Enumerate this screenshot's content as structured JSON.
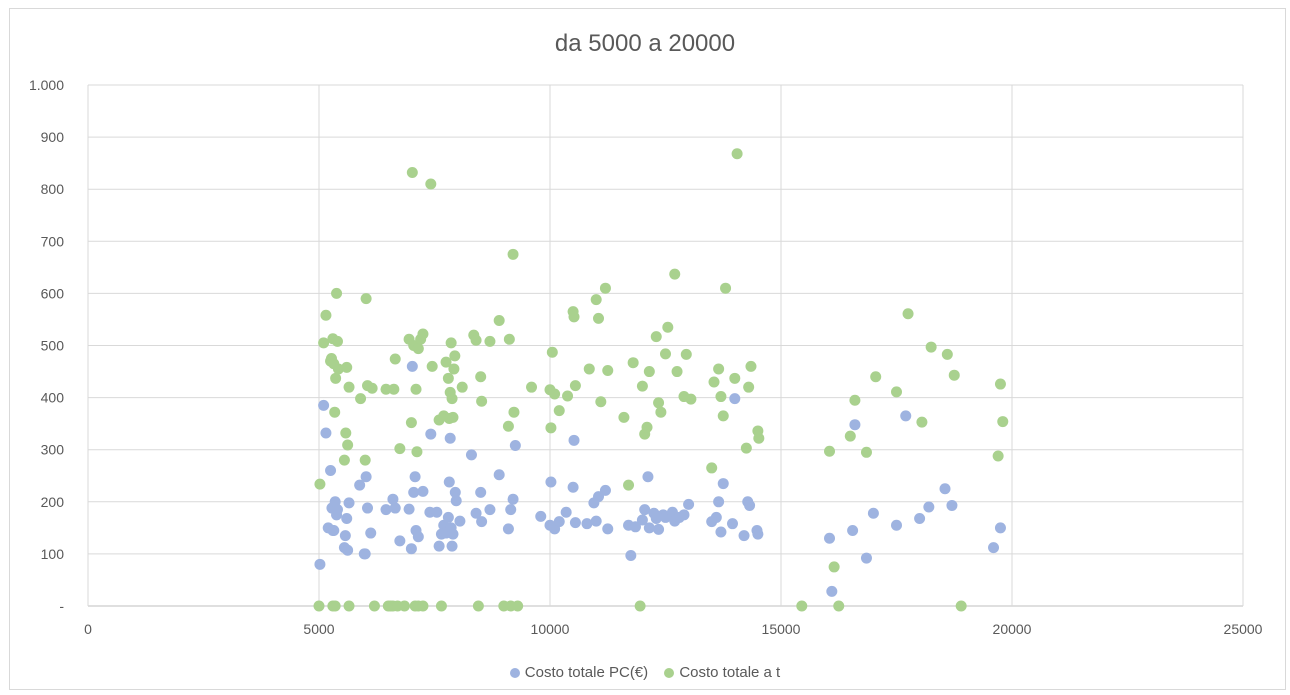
{
  "chart_data": {
    "type": "scatter",
    "title": "da 5000 a 20000",
    "xlim": [
      0,
      25000
    ],
    "ylim": [
      0,
      1000
    ],
    "x_ticks": [
      "0",
      "5000",
      "10000",
      "15000",
      "20000",
      "25000"
    ],
    "y_ticks": [
      "-",
      "100",
      "200",
      "300",
      "400",
      "500",
      "600",
      "700",
      "800",
      "900",
      "1.000"
    ],
    "grid": true,
    "legend_position": "bottom",
    "series": [
      {
        "name": "Costo totale PC(€)",
        "color": "#9eb3e0",
        "points": [
          [
            5020,
            80
          ],
          [
            5100,
            385
          ],
          [
            5150,
            332
          ],
          [
            5200,
            150
          ],
          [
            5250,
            260
          ],
          [
            5280,
            188
          ],
          [
            5300,
            145
          ],
          [
            5320,
            145
          ],
          [
            5350,
            200
          ],
          [
            5380,
            175
          ],
          [
            5400,
            185
          ],
          [
            5550,
            112
          ],
          [
            5570,
            135
          ],
          [
            5600,
            168
          ],
          [
            5620,
            107
          ],
          [
            5650,
            198
          ],
          [
            5880,
            232
          ],
          [
            5980,
            100
          ],
          [
            6000,
            100
          ],
          [
            6020,
            248
          ],
          [
            6050,
            188
          ],
          [
            6120,
            140
          ],
          [
            6450,
            185
          ],
          [
            6600,
            205
          ],
          [
            6650,
            188
          ],
          [
            6750,
            125
          ],
          [
            6950,
            186
          ],
          [
            7000,
            110
          ],
          [
            7020,
            460
          ],
          [
            7050,
            218
          ],
          [
            7080,
            248
          ],
          [
            7100,
            145
          ],
          [
            7150,
            133
          ],
          [
            7250,
            220
          ],
          [
            7400,
            180
          ],
          [
            7420,
            330
          ],
          [
            7550,
            180
          ],
          [
            7600,
            115
          ],
          [
            7650,
            138
          ],
          [
            7700,
            155
          ],
          [
            7750,
            140
          ],
          [
            7800,
            170
          ],
          [
            7820,
            238
          ],
          [
            7840,
            322
          ],
          [
            7860,
            150
          ],
          [
            7880,
            115
          ],
          [
            7900,
            138
          ],
          [
            7950,
            218
          ],
          [
            7970,
            202
          ],
          [
            8050,
            163
          ],
          [
            8300,
            290
          ],
          [
            8400,
            178
          ],
          [
            8500,
            218
          ],
          [
            8520,
            162
          ],
          [
            8700,
            185
          ],
          [
            8900,
            252
          ],
          [
            9100,
            148
          ],
          [
            9150,
            185
          ],
          [
            9200,
            205
          ],
          [
            9250,
            308
          ],
          [
            9800,
            172
          ],
          [
            10000,
            155
          ],
          [
            10020,
            238
          ],
          [
            10100,
            148
          ],
          [
            10200,
            162
          ],
          [
            10350,
            180
          ],
          [
            10500,
            228
          ],
          [
            10520,
            318
          ],
          [
            10550,
            160
          ],
          [
            10800,
            158
          ],
          [
            10950,
            198
          ],
          [
            11000,
            163
          ],
          [
            11050,
            210
          ],
          [
            11200,
            222
          ],
          [
            11250,
            148
          ],
          [
            11700,
            155
          ],
          [
            11750,
            97
          ],
          [
            11850,
            152
          ],
          [
            12000,
            165
          ],
          [
            12050,
            185
          ],
          [
            12120,
            248
          ],
          [
            12150,
            150
          ],
          [
            12250,
            178
          ],
          [
            12300,
            168
          ],
          [
            12350,
            147
          ],
          [
            12450,
            175
          ],
          [
            12500,
            170
          ],
          [
            12650,
            180
          ],
          [
            12700,
            163
          ],
          [
            12800,
            170
          ],
          [
            12900,
            175
          ],
          [
            13000,
            195
          ],
          [
            13500,
            162
          ],
          [
            13600,
            170
          ],
          [
            13650,
            200
          ],
          [
            13700,
            142
          ],
          [
            13750,
            235
          ],
          [
            13950,
            158
          ],
          [
            14000,
            398
          ],
          [
            14200,
            135
          ],
          [
            14280,
            200
          ],
          [
            14320,
            193
          ],
          [
            14480,
            145
          ],
          [
            14500,
            138
          ],
          [
            16050,
            130
          ],
          [
            16100,
            28
          ],
          [
            16550,
            145
          ],
          [
            16600,
            348
          ],
          [
            16850,
            92
          ],
          [
            17000,
            178
          ],
          [
            17500,
            155
          ],
          [
            17700,
            365
          ],
          [
            18000,
            168
          ],
          [
            18200,
            190
          ],
          [
            18550,
            225
          ],
          [
            18700,
            193
          ],
          [
            19600,
            112
          ],
          [
            19750,
            150
          ]
        ]
      },
      {
        "name": "Costo totale a t",
        "color": "#a9d18e",
        "points": [
          [
            5000,
            0
          ],
          [
            5020,
            234
          ],
          [
            5100,
            505
          ],
          [
            5150,
            558
          ],
          [
            5250,
            470
          ],
          [
            5270,
            475
          ],
          [
            5300,
            513
          ],
          [
            5320,
            465
          ],
          [
            5340,
            372
          ],
          [
            5360,
            437
          ],
          [
            5380,
            600
          ],
          [
            5400,
            508
          ],
          [
            5420,
            455
          ],
          [
            5300,
            0
          ],
          [
            5350,
            0
          ],
          [
            5550,
            280
          ],
          [
            5580,
            332
          ],
          [
            5600,
            458
          ],
          [
            5620,
            309
          ],
          [
            5650,
            420
          ],
          [
            5650,
            0
          ],
          [
            5900,
            398
          ],
          [
            6000,
            280
          ],
          [
            6020,
            590
          ],
          [
            6050,
            423
          ],
          [
            6150,
            418
          ],
          [
            6200,
            0
          ],
          [
            6450,
            416
          ],
          [
            6500,
            0
          ],
          [
            6550,
            0
          ],
          [
            6600,
            0
          ],
          [
            6620,
            416
          ],
          [
            6650,
            474
          ],
          [
            6700,
            0
          ],
          [
            6750,
            302
          ],
          [
            6850,
            0
          ],
          [
            6950,
            512
          ],
          [
            7000,
            352
          ],
          [
            7020,
            832
          ],
          [
            7050,
            500
          ],
          [
            7080,
            0
          ],
          [
            7100,
            416
          ],
          [
            7120,
            296
          ],
          [
            7150,
            494
          ],
          [
            7200,
            512
          ],
          [
            7250,
            522
          ],
          [
            7150,
            0
          ],
          [
            7250,
            0
          ],
          [
            7420,
            810
          ],
          [
            7450,
            460
          ],
          [
            7600,
            357
          ],
          [
            7650,
            0
          ],
          [
            7700,
            365
          ],
          [
            7750,
            468
          ],
          [
            7800,
            437
          ],
          [
            7820,
            360
          ],
          [
            7840,
            410
          ],
          [
            7860,
            505
          ],
          [
            7880,
            398
          ],
          [
            7900,
            362
          ],
          [
            7920,
            455
          ],
          [
            7940,
            480
          ],
          [
            8100,
            420
          ],
          [
            8350,
            520
          ],
          [
            8400,
            510
          ],
          [
            8450,
            0
          ],
          [
            8500,
            440
          ],
          [
            8520,
            393
          ],
          [
            8700,
            508
          ],
          [
            8900,
            548
          ],
          [
            9000,
            0
          ],
          [
            9100,
            345
          ],
          [
            9120,
            512
          ],
          [
            9150,
            0
          ],
          [
            9200,
            675
          ],
          [
            9220,
            372
          ],
          [
            9300,
            0
          ],
          [
            9600,
            420
          ],
          [
            10000,
            415
          ],
          [
            10020,
            342
          ],
          [
            10050,
            487
          ],
          [
            10100,
            407
          ],
          [
            10200,
            375
          ],
          [
            10380,
            403
          ],
          [
            10500,
            565
          ],
          [
            10520,
            555
          ],
          [
            10550,
            423
          ],
          [
            10850,
            455
          ],
          [
            11000,
            588
          ],
          [
            11050,
            552
          ],
          [
            11100,
            392
          ],
          [
            11200,
            610
          ],
          [
            11250,
            452
          ],
          [
            11600,
            362
          ],
          [
            11700,
            232
          ],
          [
            11800,
            467
          ],
          [
            11950,
            0
          ],
          [
            12000,
            422
          ],
          [
            12050,
            330
          ],
          [
            12100,
            343
          ],
          [
            12150,
            450
          ],
          [
            12300,
            517
          ],
          [
            12350,
            390
          ],
          [
            12400,
            372
          ],
          [
            12500,
            484
          ],
          [
            12550,
            535
          ],
          [
            12700,
            637
          ],
          [
            12750,
            450
          ],
          [
            12900,
            402
          ],
          [
            12950,
            483
          ],
          [
            13050,
            397
          ],
          [
            13500,
            265
          ],
          [
            13550,
            430
          ],
          [
            13650,
            455
          ],
          [
            13700,
            402
          ],
          [
            13750,
            365
          ],
          [
            13800,
            610
          ],
          [
            14000,
            437
          ],
          [
            14050,
            868
          ],
          [
            14250,
            303
          ],
          [
            14300,
            420
          ],
          [
            14350,
            460
          ],
          [
            14500,
            336
          ],
          [
            14520,
            322
          ],
          [
            15450,
            0
          ],
          [
            16050,
            297
          ],
          [
            16150,
            75
          ],
          [
            16250,
            0
          ],
          [
            16500,
            326
          ],
          [
            16600,
            395
          ],
          [
            16850,
            295
          ],
          [
            17050,
            440
          ],
          [
            17500,
            411
          ],
          [
            17750,
            561
          ],
          [
            18050,
            353
          ],
          [
            18250,
            497
          ],
          [
            18600,
            483
          ],
          [
            18750,
            443
          ],
          [
            18900,
            0
          ],
          [
            19700,
            288
          ],
          [
            19750,
            426
          ],
          [
            19800,
            354
          ]
        ]
      }
    ]
  }
}
